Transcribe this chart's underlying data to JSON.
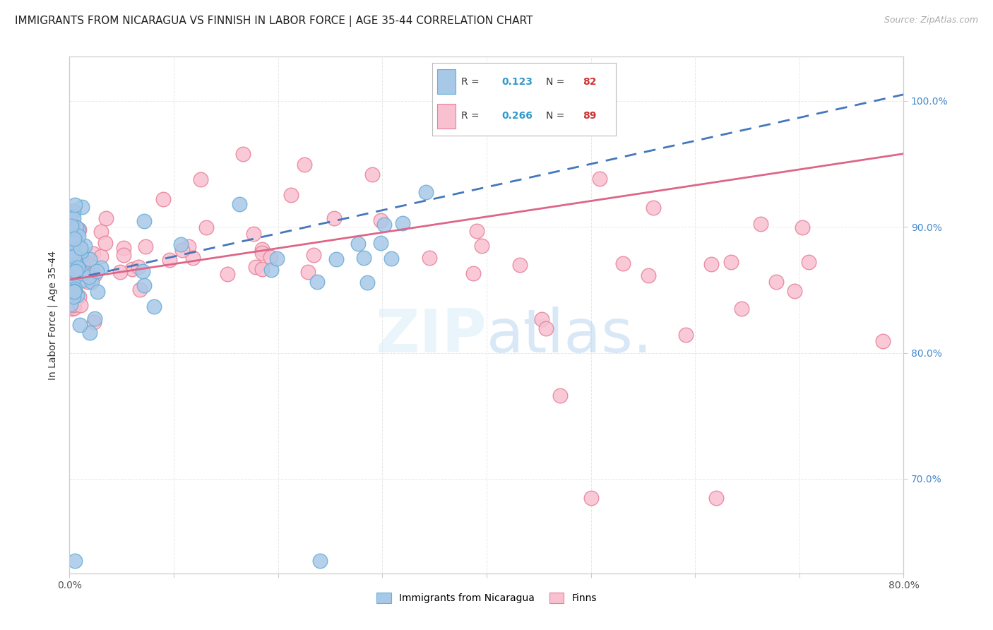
{
  "title": "IMMIGRANTS FROM NICARAGUA VS FINNISH IN LABOR FORCE | AGE 35-44 CORRELATION CHART",
  "source": "Source: ZipAtlas.com",
  "ylabel": "In Labor Force | Age 35-44",
  "xlim": [
    0.0,
    0.8
  ],
  "ylim": [
    0.625,
    1.035
  ],
  "ytick_positions": [
    0.7,
    0.8,
    0.9,
    1.0
  ],
  "yticklabels": [
    "70.0%",
    "80.0%",
    "90.0%",
    "100.0%"
  ],
  "legend_v1": "0.123",
  "legend_nv1": "82",
  "legend_v2": "0.266",
  "legend_nv2": "89",
  "blue_color": "#a8c8e8",
  "blue_edge_color": "#6baed6",
  "pink_color": "#f8c0d0",
  "pink_edge_color": "#e88098",
  "blue_line_color": "#4477bb",
  "pink_line_color": "#dd6688",
  "trendline_blue_x0": 0.0,
  "trendline_blue_y0": 0.858,
  "trendline_blue_x1": 0.8,
  "trendline_blue_y1": 1.005,
  "trendline_pink_x0": 0.0,
  "trendline_pink_y0": 0.858,
  "trendline_pink_x1": 0.8,
  "trendline_pink_y1": 0.958,
  "background_color": "#ffffff",
  "grid_color": "#e8e8e8",
  "title_fontsize": 11,
  "axis_label_fontsize": 10,
  "tick_fontsize": 10,
  "legend_label1": "Immigrants from Nicaragua",
  "legend_label2": "Finns",
  "watermark_color": "#d0e8f5",
  "r_value_color": "#3399cc",
  "n_value_color": "#cc3333"
}
